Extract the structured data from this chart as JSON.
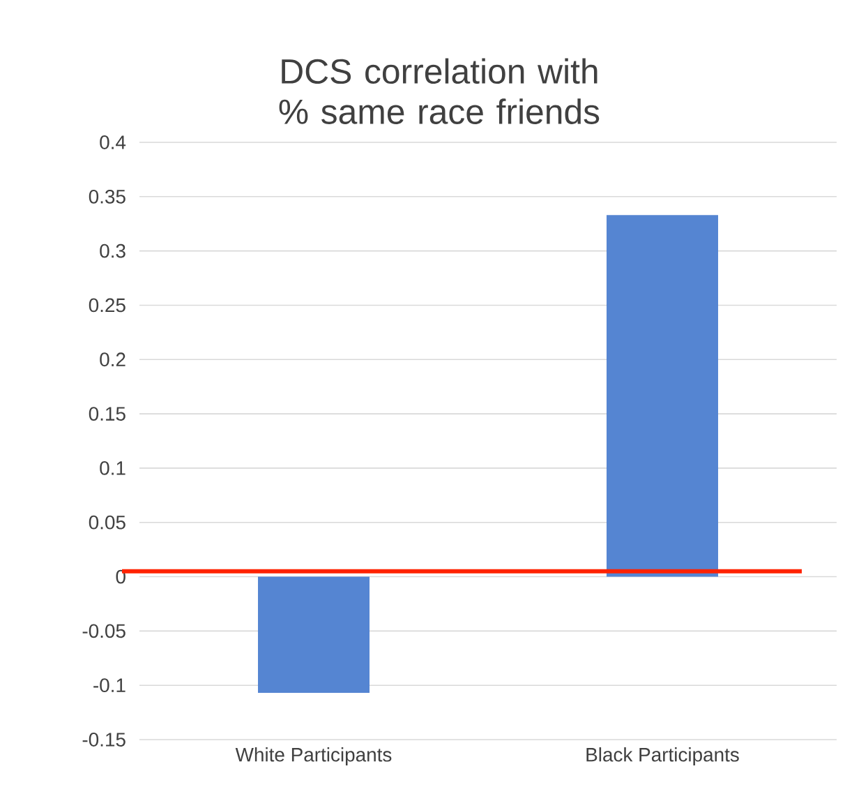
{
  "chart_data": {
    "type": "bar",
    "title": "DCS correlation with % same race friends",
    "categories": [
      "White Participants",
      "Black Participants"
    ],
    "values": [
      -0.107,
      0.333
    ],
    "color": "#5585d2",
    "ylim": [
      -0.15,
      0.4
    ],
    "yticks": [
      -0.15,
      -0.1,
      -0.05,
      0,
      0.05,
      0.1,
      0.15,
      0.2,
      0.25,
      0.3,
      0.35,
      0.4
    ],
    "grid": "y",
    "ref_lines": [
      {
        "axis": "y",
        "value": 0.005,
        "color": "#ff2200"
      }
    ]
  }
}
